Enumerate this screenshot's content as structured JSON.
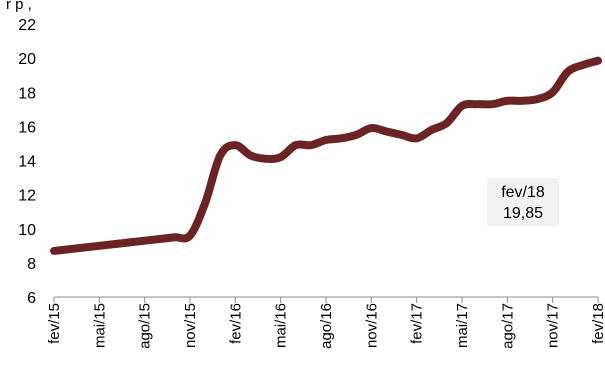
{
  "header": {
    "subtitle": "r p  ,  "
  },
  "colors": {
    "line": "#6B2323",
    "axis": "#8C8C8C",
    "annotation_bg": "#F2F2F2"
  },
  "chart_data": {
    "type": "line",
    "title": "",
    "xlabel": "",
    "ylabel": "",
    "ylim": [
      6,
      22
    ],
    "yticks": [
      6,
      8,
      10,
      12,
      14,
      16,
      18,
      20,
      22
    ],
    "grid": false,
    "legend": "none",
    "x_tick_labels": [
      "fev/15",
      "mai/15",
      "ago/15",
      "nov/15",
      "fev/16",
      "mai/16",
      "ago/16",
      "nov/16",
      "fev/17",
      "mai/17",
      "ago/17",
      "nov/17",
      "fev/18"
    ],
    "x": [
      "fev/15",
      "mar/15",
      "abr/15",
      "mai/15",
      "jun/15",
      "jul/15",
      "ago/15",
      "set/15",
      "out/15",
      "nov/15",
      "dez/15",
      "jan/16",
      "fev/16",
      "mar/16",
      "abr/16",
      "mai/16",
      "jun/16",
      "jul/16",
      "ago/16",
      "set/16",
      "out/16",
      "nov/16",
      "dez/16",
      "jan/17",
      "fev/17",
      "mar/17",
      "abr/17",
      "mai/17",
      "jun/17",
      "jul/17",
      "ago/17",
      "set/17",
      "out/17",
      "nov/17",
      "dez/17",
      "jan/18",
      "fev/18"
    ],
    "series": [
      {
        "values": [
          8.7,
          8.8,
          8.9,
          9.0,
          9.1,
          9.2,
          9.3,
          9.4,
          9.5,
          9.6,
          11.5,
          14.3,
          14.9,
          14.3,
          14.1,
          14.2,
          14.9,
          14.9,
          15.2,
          15.3,
          15.5,
          15.9,
          15.7,
          15.5,
          15.3,
          15.8,
          16.2,
          17.2,
          17.3,
          17.3,
          17.5,
          17.5,
          17.6,
          18.0,
          19.2,
          19.6,
          19.85
        ]
      }
    ],
    "annotation": {
      "line1": "fev/18",
      "line2": "19,85"
    }
  }
}
